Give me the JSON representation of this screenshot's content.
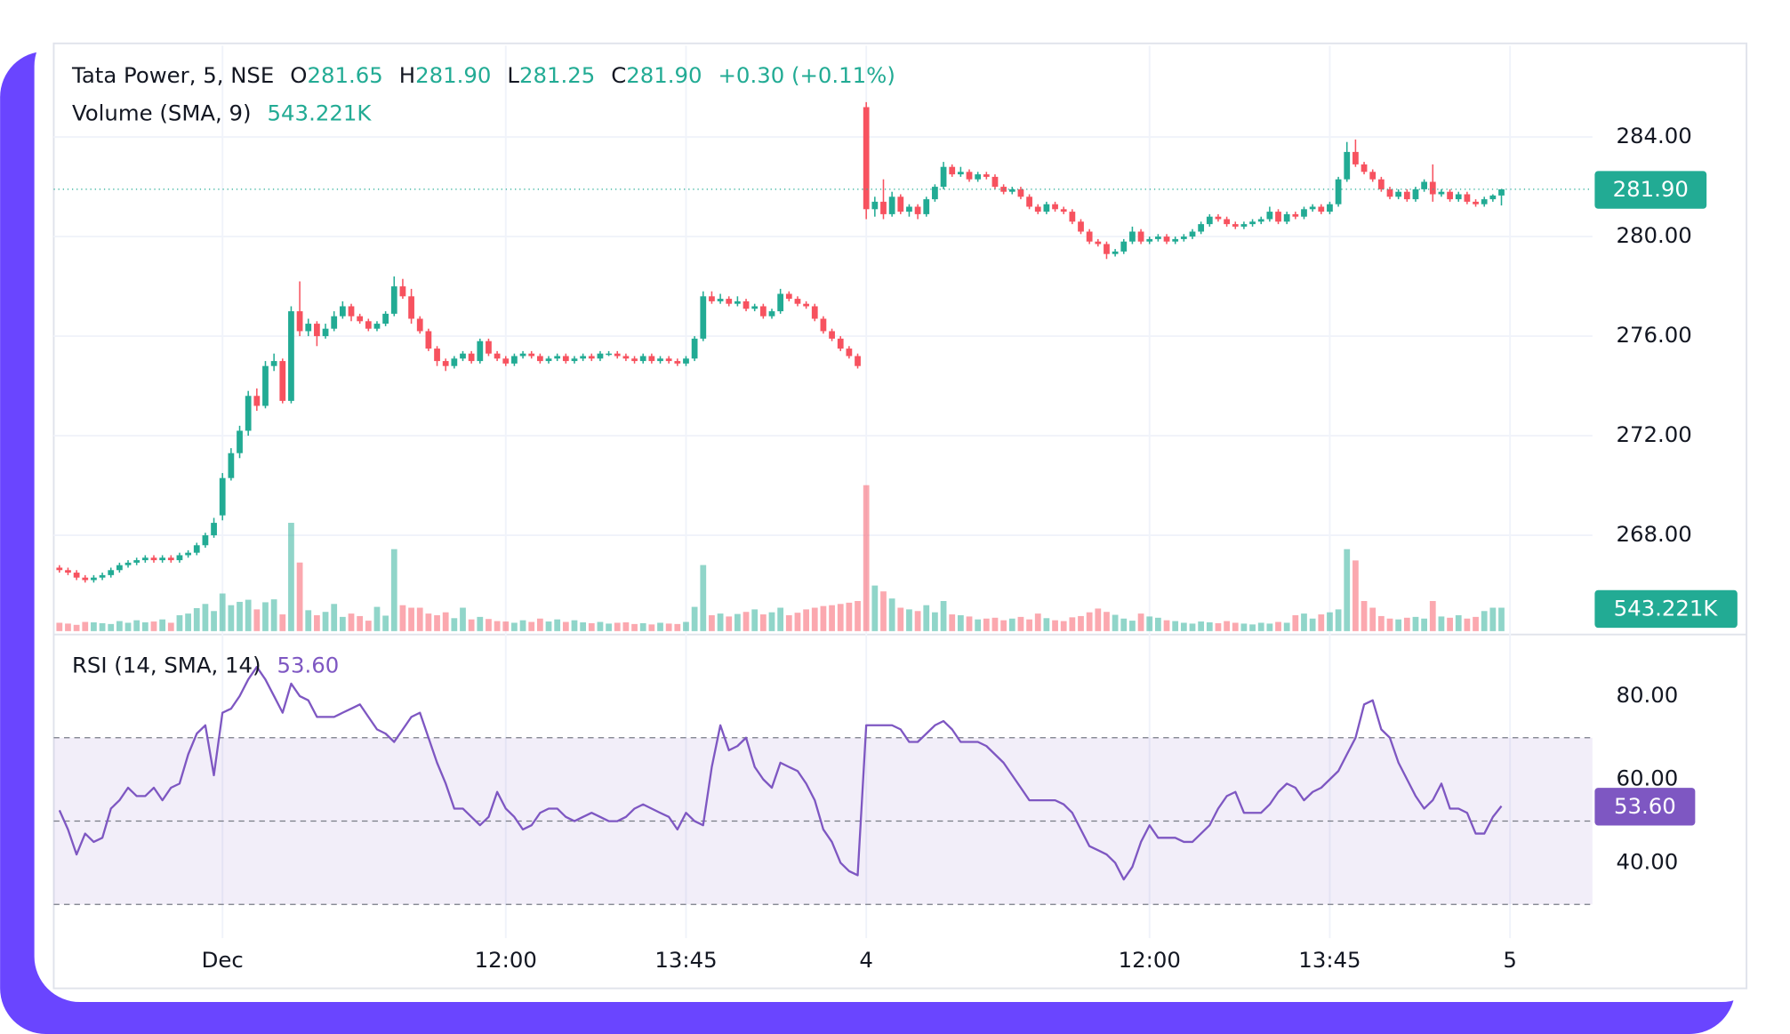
{
  "chart_data": {
    "type": "candlestick",
    "title": "Tata Power, 5, NSE",
    "ohlc_legend": [
      {
        "prefix": "O",
        "text": "281.65"
      },
      {
        "prefix": "H",
        "text": "281.90"
      },
      {
        "prefix": "L",
        "text": "281.25"
      },
      {
        "prefix": "C",
        "text": "281.90"
      }
    ],
    "change": "+0.30 (+0.11%)",
    "up_color": "#22ab94",
    "down_color": "#f7525f",
    "xlim": [
      -0.66,
      178.6
    ],
    "xticks": [
      {
        "value": 19,
        "label": "Dec"
      },
      {
        "value": 52,
        "label": "12:00"
      },
      {
        "value": 73,
        "label": "13:45"
      },
      {
        "value": 94,
        "label": "4"
      },
      {
        "value": 127,
        "label": "12:00"
      },
      {
        "value": 148,
        "label": "13:45"
      },
      {
        "value": 169,
        "label": "5"
      }
    ],
    "ylim": [
      264.15,
      287.67
    ],
    "yticks": [
      {
        "value": 268,
        "label": "268.00"
      },
      {
        "value": 272,
        "label": "272.00"
      },
      {
        "value": 276,
        "label": "276.00"
      },
      {
        "value": 280,
        "label": "280.00"
      },
      {
        "value": 284,
        "label": "284.00"
      }
    ],
    "grid": true,
    "last_price": {
      "value": 281.9,
      "label": "281.90"
    },
    "ohlc": [
      [
        266.7,
        266.8,
        266.5,
        266.6
      ],
      [
        266.6,
        266.7,
        266.4,
        266.5
      ],
      [
        266.5,
        266.6,
        266.2,
        266.3
      ],
      [
        266.3,
        266.4,
        266.1,
        266.2
      ],
      [
        266.2,
        266.4,
        266.1,
        266.3
      ],
      [
        266.3,
        266.5,
        266.2,
        266.4
      ],
      [
        266.4,
        266.7,
        266.3,
        266.6
      ],
      [
        266.6,
        266.9,
        266.5,
        266.8
      ],
      [
        266.8,
        267.0,
        266.7,
        266.9
      ],
      [
        266.9,
        267.1,
        266.8,
        267.0
      ],
      [
        267.0,
        267.2,
        266.9,
        267.1
      ],
      [
        267.1,
        267.2,
        266.9,
        267.0
      ],
      [
        267.0,
        267.2,
        266.9,
        267.1
      ],
      [
        267.1,
        267.2,
        266.9,
        267.0
      ],
      [
        267.0,
        267.3,
        266.9,
        267.2
      ],
      [
        267.2,
        267.4,
        267.1,
        267.3
      ],
      [
        267.3,
        267.7,
        267.2,
        267.6
      ],
      [
        267.6,
        268.1,
        267.5,
        268.0
      ],
      [
        268.0,
        268.7,
        267.9,
        268.5
      ],
      [
        268.8,
        270.5,
        268.6,
        270.3
      ],
      [
        270.3,
        271.5,
        270.2,
        271.3
      ],
      [
        271.3,
        272.4,
        271.1,
        272.2
      ],
      [
        272.2,
        273.8,
        272.0,
        273.6
      ],
      [
        273.6,
        273.9,
        273.0,
        273.2
      ],
      [
        273.2,
        275.0,
        273.1,
        274.8
      ],
      [
        274.8,
        275.3,
        274.6,
        275.0
      ],
      [
        275.0,
        275.1,
        273.3,
        273.4
      ],
      [
        273.4,
        277.2,
        273.3,
        277.0
      ],
      [
        277.0,
        278.2,
        276.0,
        276.2
      ],
      [
        276.2,
        276.7,
        276.0,
        276.5
      ],
      [
        276.5,
        276.6,
        275.6,
        276.0
      ],
      [
        276.0,
        276.5,
        275.9,
        276.3
      ],
      [
        276.3,
        277.0,
        276.2,
        276.8
      ],
      [
        276.8,
        277.4,
        276.7,
        277.2
      ],
      [
        277.2,
        277.3,
        276.6,
        276.8
      ],
      [
        276.8,
        276.9,
        276.5,
        276.6
      ],
      [
        276.6,
        276.7,
        276.2,
        276.3
      ],
      [
        276.3,
        276.6,
        276.2,
        276.5
      ],
      [
        276.5,
        277.0,
        276.4,
        276.9
      ],
      [
        276.9,
        278.4,
        276.8,
        278.0
      ],
      [
        278.0,
        278.3,
        277.5,
        277.6
      ],
      [
        277.6,
        277.9,
        276.5,
        276.7
      ],
      [
        276.7,
        276.8,
        276.1,
        276.2
      ],
      [
        276.2,
        276.3,
        275.4,
        275.5
      ],
      [
        275.5,
        275.6,
        274.8,
        275.0
      ],
      [
        275.0,
        275.1,
        274.6,
        274.8
      ],
      [
        274.8,
        275.2,
        274.7,
        275.1
      ],
      [
        275.1,
        275.4,
        275.0,
        275.3
      ],
      [
        275.3,
        275.4,
        274.9,
        275.0
      ],
      [
        275.0,
        275.9,
        274.9,
        275.8
      ],
      [
        275.8,
        275.9,
        275.2,
        275.3
      ],
      [
        275.3,
        275.4,
        275.0,
        275.1
      ],
      [
        275.1,
        275.2,
        274.8,
        274.9
      ],
      [
        274.9,
        275.3,
        274.8,
        275.2
      ],
      [
        275.2,
        275.4,
        275.1,
        275.3
      ],
      [
        275.3,
        275.4,
        275.1,
        275.2
      ],
      [
        275.2,
        275.3,
        274.9,
        275.0
      ],
      [
        275.0,
        275.2,
        274.9,
        275.1
      ],
      [
        275.1,
        275.3,
        275.0,
        275.2
      ],
      [
        275.2,
        275.3,
        274.9,
        275.0
      ],
      [
        275.0,
        275.2,
        274.9,
        275.1
      ],
      [
        275.1,
        275.3,
        275.0,
        275.2
      ],
      [
        275.2,
        275.3,
        275.0,
        275.1
      ],
      [
        275.1,
        275.4,
        275.0,
        275.3
      ],
      [
        275.3,
        275.4,
        275.2,
        275.3
      ],
      [
        275.3,
        275.4,
        275.1,
        275.2
      ],
      [
        275.2,
        275.3,
        275.0,
        275.1
      ],
      [
        275.1,
        275.2,
        274.9,
        275.0
      ],
      [
        275.0,
        275.3,
        274.9,
        275.2
      ],
      [
        275.2,
        275.3,
        274.9,
        275.0
      ],
      [
        275.0,
        275.2,
        274.9,
        275.1
      ],
      [
        275.1,
        275.2,
        274.9,
        275.0
      ],
      [
        275.0,
        275.1,
        274.8,
        274.9
      ],
      [
        274.9,
        275.2,
        274.8,
        275.1
      ],
      [
        275.1,
        276.0,
        275.0,
        275.9
      ],
      [
        275.9,
        277.8,
        275.8,
        277.6
      ],
      [
        277.6,
        277.8,
        277.3,
        277.4
      ],
      [
        277.4,
        277.7,
        277.3,
        277.5
      ],
      [
        277.5,
        277.6,
        277.2,
        277.3
      ],
      [
        277.3,
        277.6,
        277.2,
        277.4
      ],
      [
        277.4,
        277.5,
        277.0,
        277.1
      ],
      [
        277.1,
        277.3,
        277.0,
        277.2
      ],
      [
        277.2,
        277.3,
        276.7,
        276.8
      ],
      [
        276.8,
        277.1,
        276.7,
        277.0
      ],
      [
        277.0,
        277.9,
        276.9,
        277.7
      ],
      [
        277.7,
        277.8,
        277.4,
        277.5
      ],
      [
        277.5,
        277.6,
        277.2,
        277.3
      ],
      [
        277.3,
        277.4,
        277.1,
        277.2
      ],
      [
        277.2,
        277.3,
        276.6,
        276.7
      ],
      [
        276.7,
        276.8,
        276.1,
        276.2
      ],
      [
        276.2,
        276.3,
        275.8,
        275.9
      ],
      [
        275.9,
        276.0,
        275.4,
        275.5
      ],
      [
        275.5,
        275.6,
        275.1,
        275.2
      ],
      [
        275.2,
        275.3,
        274.7,
        274.8
      ],
      [
        285.2,
        285.4,
        280.7,
        281.1
      ],
      [
        281.1,
        281.6,
        280.8,
        281.4
      ],
      [
        281.4,
        282.3,
        280.7,
        280.9
      ],
      [
        280.9,
        281.8,
        280.8,
        281.6
      ],
      [
        281.6,
        281.7,
        280.9,
        281.0
      ],
      [
        281.0,
        281.3,
        280.8,
        281.2
      ],
      [
        281.2,
        281.3,
        280.7,
        280.9
      ],
      [
        280.9,
        281.6,
        280.8,
        281.5
      ],
      [
        281.5,
        282.1,
        281.4,
        282.0
      ],
      [
        282.0,
        283.0,
        281.9,
        282.8
      ],
      [
        282.8,
        282.9,
        282.4,
        282.5
      ],
      [
        282.5,
        282.8,
        282.4,
        282.6
      ],
      [
        282.6,
        282.7,
        282.2,
        282.3
      ],
      [
        282.3,
        282.6,
        282.2,
        282.5
      ],
      [
        282.5,
        282.6,
        282.3,
        282.4
      ],
      [
        282.4,
        282.5,
        281.9,
        282.0
      ],
      [
        282.0,
        282.1,
        281.7,
        281.8
      ],
      [
        281.8,
        282.0,
        281.7,
        281.9
      ],
      [
        281.9,
        282.0,
        281.5,
        281.6
      ],
      [
        281.6,
        281.7,
        281.1,
        281.2
      ],
      [
        281.2,
        281.3,
        280.9,
        281.0
      ],
      [
        281.0,
        281.4,
        280.9,
        281.3
      ],
      [
        281.3,
        281.4,
        281.0,
        281.1
      ],
      [
        281.1,
        281.2,
        280.9,
        281.0
      ],
      [
        281.0,
        281.1,
        280.5,
        280.6
      ],
      [
        280.6,
        280.7,
        280.1,
        280.2
      ],
      [
        280.2,
        280.3,
        279.7,
        279.8
      ],
      [
        279.8,
        279.9,
        279.6,
        279.7
      ],
      [
        279.7,
        279.8,
        279.1,
        279.3
      ],
      [
        279.3,
        279.5,
        279.2,
        279.4
      ],
      [
        279.4,
        279.9,
        279.3,
        279.8
      ],
      [
        279.8,
        280.4,
        279.7,
        280.2
      ],
      [
        280.2,
        280.3,
        279.7,
        279.8
      ],
      [
        279.8,
        280.0,
        279.7,
        279.9
      ],
      [
        279.9,
        280.1,
        279.8,
        280.0
      ],
      [
        280.0,
        280.1,
        279.7,
        279.8
      ],
      [
        279.8,
        280.0,
        279.7,
        279.9
      ],
      [
        279.9,
        280.1,
        279.8,
        280.0
      ],
      [
        280.0,
        280.3,
        279.9,
        280.2
      ],
      [
        280.2,
        280.6,
        280.1,
        280.5
      ],
      [
        280.5,
        280.9,
        280.4,
        280.8
      ],
      [
        280.8,
        280.9,
        280.6,
        280.7
      ],
      [
        280.7,
        280.8,
        280.4,
        280.5
      ],
      [
        280.5,
        280.6,
        280.3,
        280.4
      ],
      [
        280.4,
        280.6,
        280.3,
        280.5
      ],
      [
        280.5,
        280.7,
        280.4,
        280.6
      ],
      [
        280.6,
        280.8,
        280.5,
        280.7
      ],
      [
        280.7,
        281.2,
        280.6,
        281.0
      ],
      [
        281.0,
        281.1,
        280.5,
        280.6
      ],
      [
        280.6,
        281.0,
        280.5,
        280.9
      ],
      [
        280.9,
        281.0,
        280.7,
        280.8
      ],
      [
        280.8,
        281.2,
        280.7,
        281.1
      ],
      [
        281.1,
        281.3,
        281.0,
        281.2
      ],
      [
        281.2,
        281.3,
        280.9,
        281.0
      ],
      [
        281.0,
        281.4,
        280.9,
        281.3
      ],
      [
        281.3,
        282.4,
        281.2,
        282.3
      ],
      [
        282.3,
        283.8,
        282.2,
        283.4
      ],
      [
        283.4,
        283.9,
        282.8,
        282.9
      ],
      [
        282.9,
        283.0,
        282.5,
        282.6
      ],
      [
        282.6,
        282.7,
        282.2,
        282.3
      ],
      [
        282.3,
        282.4,
        281.8,
        281.9
      ],
      [
        281.9,
        282.0,
        281.5,
        281.6
      ],
      [
        281.6,
        281.9,
        281.5,
        281.8
      ],
      [
        281.8,
        281.9,
        281.4,
        281.5
      ],
      [
        281.5,
        282.0,
        281.4,
        281.9
      ],
      [
        281.9,
        282.3,
        281.8,
        282.2
      ],
      [
        282.2,
        282.9,
        281.4,
        281.7
      ],
      [
        281.7,
        281.9,
        281.6,
        281.8
      ],
      [
        281.8,
        281.9,
        281.4,
        281.5
      ],
      [
        281.5,
        281.8,
        281.4,
        281.7
      ],
      [
        281.7,
        281.8,
        281.3,
        281.4
      ],
      [
        281.4,
        281.5,
        281.2,
        281.3
      ],
      [
        281.3,
        281.6,
        281.2,
        281.5
      ],
      [
        281.5,
        281.7,
        281.4,
        281.65
      ],
      [
        281.65,
        281.9,
        281.25,
        281.9
      ]
    ],
    "volume": {
      "title": "Volume (SMA, 9)",
      "sma": {
        "value": 543221,
        "label": "543.221K"
      },
      "lim": [
        0,
        14000000
      ],
      "values": [
        200000,
        180000,
        150000,
        220000,
        210000,
        190000,
        170000,
        240000,
        200000,
        260000,
        210000,
        230000,
        280000,
        200000,
        380000,
        420000,
        550000,
        650000,
        480000,
        900000,
        620000,
        700000,
        750000,
        520000,
        690000,
        760000,
        400000,
        2590000,
        1640000,
        500000,
        380000,
        460000,
        650000,
        340000,
        420000,
        360000,
        250000,
        580000,
        370000,
        1960000,
        620000,
        560000,
        560000,
        420000,
        380000,
        450000,
        310000,
        560000,
        280000,
        340000,
        290000,
        240000,
        230000,
        200000,
        260000,
        220000,
        300000,
        230000,
        280000,
        220000,
        260000,
        210000,
        190000,
        220000,
        180000,
        200000,
        210000,
        170000,
        190000,
        160000,
        200000,
        180000,
        170000,
        220000,
        580000,
        1580000,
        380000,
        420000,
        350000,
        410000,
        460000,
        520000,
        400000,
        450000,
        560000,
        380000,
        440000,
        520000,
        560000,
        600000,
        620000,
        650000,
        680000,
        720000,
        3490000,
        1090000,
        950000,
        780000,
        560000,
        520000,
        480000,
        620000,
        450000,
        720000,
        400000,
        380000,
        350000,
        280000,
        300000,
        320000,
        260000,
        300000,
        340000,
        280000,
        420000,
        310000,
        260000,
        240000,
        330000,
        360000,
        450000,
        540000,
        460000,
        390000,
        300000,
        250000,
        420000,
        350000,
        320000,
        260000,
        240000,
        200000,
        180000,
        230000,
        210000,
        190000,
        240000,
        200000,
        180000,
        160000,
        200000,
        180000,
        220000,
        200000,
        380000,
        420000,
        300000,
        400000,
        450000,
        520000,
        1960000,
        1690000,
        720000,
        560000,
        360000,
        300000,
        280000,
        320000,
        340000,
        300000,
        720000,
        350000,
        320000,
        380000,
        300000,
        340000,
        480000,
        560000,
        560000
      ]
    },
    "rsi": {
      "title": "RSI (14, SMA, 14)",
      "color": "#7e57c2",
      "current": {
        "value": 53.6,
        "label": "53.60"
      },
      "lim": [
        25.75,
        92.3
      ],
      "ticks": [
        {
          "value": 40,
          "label": "40.00"
        },
        {
          "value": 60,
          "label": "60.00"
        },
        {
          "value": 80,
          "label": "80.00"
        }
      ],
      "band": [
        30,
        70
      ],
      "mid": 50,
      "values": [
        52.6,
        48,
        42,
        47,
        45,
        46,
        53,
        55,
        58,
        56,
        56,
        58,
        55,
        58,
        59,
        66,
        71,
        73,
        61,
        76,
        77,
        80,
        84,
        87,
        84,
        80,
        76,
        83,
        80,
        79,
        75,
        75,
        75,
        76,
        77,
        78,
        75,
        72,
        71,
        69,
        72,
        75,
        76,
        70,
        64,
        59,
        53,
        53,
        51,
        49,
        51,
        57,
        53,
        51,
        48,
        49,
        52,
        53,
        53,
        51,
        50,
        51,
        52,
        51,
        50,
        50,
        51,
        53,
        54,
        53,
        52,
        51,
        48,
        52,
        50,
        49,
        63,
        73,
        67,
        68,
        70,
        63,
        60,
        58,
        64,
        63,
        62,
        59,
        55,
        48,
        45,
        40,
        38,
        37,
        73,
        73,
        73,
        73,
        72,
        69,
        69,
        71,
        73,
        74,
        72,
        69,
        69,
        69,
        68,
        66,
        64,
        61,
        58,
        55,
        55,
        55,
        55,
        54,
        52,
        48,
        44,
        43,
        42,
        40,
        36,
        39,
        45,
        49,
        46,
        46,
        46,
        45,
        45,
        47,
        49,
        53,
        56,
        57,
        52,
        52,
        52,
        54,
        57,
        59,
        58,
        55,
        57,
        58,
        60,
        62,
        66,
        70,
        78,
        79,
        72,
        70,
        64,
        60,
        56,
        53,
        55,
        59,
        53,
        53,
        52,
        47,
        47,
        51,
        53.6
      ]
    }
  }
}
